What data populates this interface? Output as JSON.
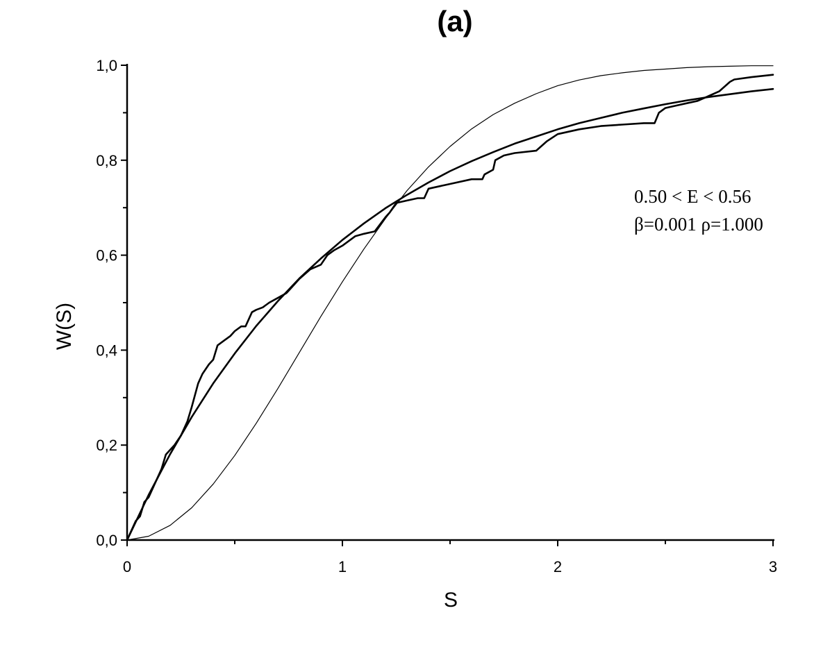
{
  "chart_data": {
    "type": "line",
    "title": "(a)",
    "xlabel": "S",
    "ylabel": "W(S)",
    "xlim": [
      0,
      3
    ],
    "ylim": [
      0,
      1
    ],
    "xticks": [
      0,
      1,
      2,
      3
    ],
    "xtick_labels": [
      "0",
      "1",
      "2",
      "3"
    ],
    "yticks": [
      0,
      0.2,
      0.4,
      0.6,
      0.8,
      1.0
    ],
    "ytick_labels": [
      "0,0",
      "0,2",
      "0,4",
      "0,6",
      "0,8",
      "1,0"
    ],
    "grid": false,
    "legend": "none",
    "annotations": [
      "0.50 < E < 0.56",
      "β=0.001 ρ=1.000"
    ],
    "series": [
      {
        "style": "thin-smooth",
        "x": [
          0,
          0.1,
          0.2,
          0.3,
          0.4,
          0.5,
          0.6,
          0.7,
          0.8,
          0.9,
          1.0,
          1.1,
          1.2,
          1.3,
          1.4,
          1.5,
          1.6,
          1.7,
          1.8,
          1.9,
          2.0,
          2.1,
          2.2,
          2.3,
          2.4,
          2.5,
          2.6,
          2.7,
          2.8,
          2.9,
          3.0
        ],
        "y": [
          0,
          0.008,
          0.031,
          0.068,
          0.118,
          0.178,
          0.246,
          0.319,
          0.395,
          0.471,
          0.544,
          0.613,
          0.677,
          0.736,
          0.786,
          0.829,
          0.866,
          0.896,
          0.92,
          0.94,
          0.957,
          0.969,
          0.978,
          0.984,
          0.989,
          0.992,
          0.995,
          0.997,
          0.998,
          0.999,
          0.999
        ]
      },
      {
        "style": "medium-smooth",
        "x": [
          0,
          0.1,
          0.2,
          0.3,
          0.4,
          0.5,
          0.6,
          0.7,
          0.8,
          0.9,
          1.0,
          1.1,
          1.2,
          1.3,
          1.4,
          1.5,
          1.6,
          1.7,
          1.8,
          1.9,
          2.0,
          2.1,
          2.2,
          2.3,
          2.4,
          2.5,
          2.6,
          2.7,
          2.8,
          2.9,
          3.0
        ],
        "y": [
          0,
          0.095,
          0.181,
          0.259,
          0.33,
          0.393,
          0.451,
          0.503,
          0.551,
          0.593,
          0.632,
          0.667,
          0.699,
          0.727,
          0.753,
          0.777,
          0.798,
          0.817,
          0.835,
          0.85,
          0.865,
          0.878,
          0.889,
          0.9,
          0.909,
          0.918,
          0.926,
          0.933,
          0.939,
          0.945,
          0.95
        ]
      },
      {
        "style": "stepped",
        "x": [
          0,
          0.02,
          0.04,
          0.06,
          0.08,
          0.1,
          0.12,
          0.14,
          0.16,
          0.18,
          0.2,
          0.22,
          0.25,
          0.28,
          0.3,
          0.33,
          0.35,
          0.38,
          0.4,
          0.42,
          0.45,
          0.48,
          0.5,
          0.53,
          0.55,
          0.58,
          0.6,
          0.63,
          0.66,
          0.7,
          0.74,
          0.76,
          0.8,
          0.85,
          0.9,
          0.93,
          0.96,
          1.0,
          1.03,
          1.06,
          1.1,
          1.15,
          1.2,
          1.22,
          1.25,
          1.3,
          1.35,
          1.38,
          1.4,
          1.5,
          1.6,
          1.65,
          1.66,
          1.7,
          1.71,
          1.75,
          1.8,
          1.9,
          1.95,
          2.0,
          2.1,
          2.2,
          2.3,
          2.4,
          2.45,
          2.47,
          2.5,
          2.55,
          2.6,
          2.65,
          2.7,
          2.75,
          2.8,
          2.82,
          2.9,
          3.0
        ],
        "y": [
          0,
          0.02,
          0.04,
          0.05,
          0.08,
          0.09,
          0.11,
          0.13,
          0.15,
          0.18,
          0.19,
          0.2,
          0.22,
          0.25,
          0.28,
          0.33,
          0.35,
          0.37,
          0.38,
          0.41,
          0.42,
          0.43,
          0.44,
          0.45,
          0.45,
          0.48,
          0.485,
          0.49,
          0.5,
          0.51,
          0.52,
          0.53,
          0.55,
          0.57,
          0.58,
          0.6,
          0.61,
          0.62,
          0.63,
          0.64,
          0.645,
          0.65,
          0.68,
          0.69,
          0.71,
          0.715,
          0.72,
          0.72,
          0.74,
          0.75,
          0.76,
          0.76,
          0.77,
          0.78,
          0.8,
          0.81,
          0.815,
          0.82,
          0.84,
          0.855,
          0.865,
          0.872,
          0.875,
          0.878,
          0.878,
          0.9,
          0.91,
          0.915,
          0.92,
          0.925,
          0.935,
          0.945,
          0.965,
          0.97,
          0.975,
          0.98
        ]
      }
    ]
  }
}
